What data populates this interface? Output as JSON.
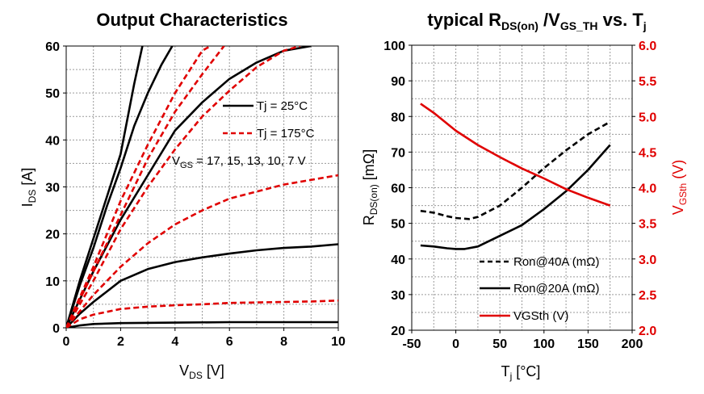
{
  "chart_data": [
    {
      "type": "line",
      "title": "Output Characteristics",
      "xlabel": "V",
      "xlabel_sub": "DS",
      "xlabel_unit": " [V]",
      "ylabel": "I",
      "ylabel_sub": "DS",
      "ylabel_unit": " [A]",
      "xlim": [
        0,
        10
      ],
      "ylim": [
        0,
        60
      ],
      "xticks": [
        0,
        2,
        4,
        6,
        8,
        10
      ],
      "yticks": [
        0,
        10,
        20,
        30,
        40,
        50,
        60
      ],
      "grid": true,
      "legend": [
        {
          "label": "Tj = 25°C",
          "color": "#000000",
          "dash": "solid"
        },
        {
          "label": "Tj = 175°C",
          "color": "#e00000",
          "dash": "dashed"
        }
      ],
      "annotation": {
        "pre": "V",
        "sub": "GS",
        "post": " = 17, 15, 13, 10, 7 V"
      },
      "series": [
        {
          "color": "#000000",
          "dash": "solid",
          "points": [
            [
              0,
              0
            ],
            [
              0.5,
              10
            ],
            [
              1,
              19
            ],
            [
              1.5,
              28
            ],
            [
              2,
              37
            ],
            [
              2.5,
              52
            ],
            [
              2.8,
              60
            ]
          ]
        },
        {
          "color": "#000000",
          "dash": "solid",
          "points": [
            [
              0,
              0
            ],
            [
              0.5,
              9
            ],
            [
              1,
              17
            ],
            [
              1.5,
              26
            ],
            [
              2,
              34
            ],
            [
              2.5,
              43
            ],
            [
              3,
              50
            ],
            [
              3.5,
              56
            ],
            [
              3.9,
              60
            ]
          ]
        },
        {
          "color": "#000000",
          "dash": "solid",
          "points": [
            [
              0,
              0
            ],
            [
              0.5,
              6
            ],
            [
              1,
              12
            ],
            [
              2,
              23
            ],
            [
              3,
              32.5
            ],
            [
              4,
              42
            ],
            [
              5,
              48
            ],
            [
              6,
              53
            ],
            [
              7,
              56.5
            ],
            [
              8,
              59
            ],
            [
              9,
              60
            ]
          ]
        },
        {
          "color": "#000000",
          "dash": "solid",
          "points": [
            [
              0,
              0
            ],
            [
              0.5,
              3
            ],
            [
              1,
              5.5
            ],
            [
              2,
              10
            ],
            [
              3,
              12.5
            ],
            [
              4,
              14
            ],
            [
              5,
              15
            ],
            [
              6,
              15.8
            ],
            [
              7,
              16.5
            ],
            [
              8,
              17
            ],
            [
              9,
              17.3
            ],
            [
              10,
              17.8
            ]
          ]
        },
        {
          "color": "#000000",
          "dash": "solid",
          "points": [
            [
              0,
              0
            ],
            [
              0.5,
              0.5
            ],
            [
              1,
              0.8
            ],
            [
              2,
              1
            ],
            [
              4,
              1.1
            ],
            [
              6,
              1.2
            ],
            [
              8,
              1.2
            ],
            [
              10,
              1.2
            ]
          ]
        },
        {
          "color": "#e00000",
          "dash": "dashed",
          "points": [
            [
              0,
              0
            ],
            [
              1,
              13
            ],
            [
              2,
              27
            ],
            [
              3,
              39
            ],
            [
              4,
              50
            ],
            [
              5,
              59
            ],
            [
              5.3,
              60
            ]
          ]
        },
        {
          "color": "#e00000",
          "dash": "dashed",
          "points": [
            [
              0,
              0
            ],
            [
              1,
              12
            ],
            [
              2,
              24
            ],
            [
              3,
              36
            ],
            [
              4,
              46
            ],
            [
              5,
              54
            ],
            [
              5.8,
              60
            ]
          ]
        },
        {
          "color": "#e00000",
          "dash": "dashed",
          "points": [
            [
              0,
              0
            ],
            [
              1,
              10
            ],
            [
              2,
              21
            ],
            [
              3,
              30
            ],
            [
              4,
              38
            ],
            [
              5,
              45
            ],
            [
              6,
              50.5
            ],
            [
              7,
              55.5
            ],
            [
              8,
              59
            ],
            [
              8.6,
              60
            ]
          ]
        },
        {
          "color": "#e00000",
          "dash": "dashed",
          "points": [
            [
              0,
              0
            ],
            [
              0.5,
              3.5
            ],
            [
              1,
              7
            ],
            [
              2,
              13
            ],
            [
              3,
              18
            ],
            [
              4,
              22
            ],
            [
              5,
              25
            ],
            [
              6,
              27.5
            ],
            [
              7,
              29
            ],
            [
              8,
              30.5
            ],
            [
              9,
              31.5
            ],
            [
              10,
              32.5
            ]
          ]
        },
        {
          "color": "#e00000",
          "dash": "dashed",
          "points": [
            [
              0,
              0
            ],
            [
              0.5,
              1.8
            ],
            [
              1,
              2.8
            ],
            [
              2,
              4
            ],
            [
              3,
              4.5
            ],
            [
              4,
              4.8
            ],
            [
              5,
              5
            ],
            [
              6,
              5.3
            ],
            [
              7,
              5.4
            ],
            [
              8,
              5.5
            ],
            [
              9,
              5.6
            ],
            [
              10,
              5.8
            ]
          ]
        }
      ]
    },
    {
      "type": "line",
      "title_parts": {
        "a": "typical R",
        "b": "DS(on)",
        "c": " /V",
        "d": "GS_TH",
        "e": " vs. T",
        "f": "j"
      },
      "xlabel": "T",
      "xlabel_sub": "j",
      "xlabel_unit": " [°C]",
      "ylabel": "R",
      "ylabel_sub": "DS(on)",
      "ylabel_unit": " [mΩ]",
      "y2label": "V",
      "y2label_sub": "GSth",
      "y2label_unit": " (V)",
      "xlim": [
        -50,
        200
      ],
      "ylim": [
        20,
        100
      ],
      "y2lim": [
        2.0,
        6.0
      ],
      "xticks": [
        -50,
        0,
        50,
        100,
        150,
        200
      ],
      "yticks": [
        20,
        30,
        40,
        50,
        60,
        70,
        80,
        90,
        100
      ],
      "y2ticks": [
        "2.0",
        "2.5",
        "3.0",
        "3.5",
        "4.0",
        "4.5",
        "5.0",
        "5.5",
        "6.0"
      ],
      "grid": true,
      "legend": [
        {
          "label": "Ron@40A (mΩ)",
          "color": "#000000",
          "dash": "dashed"
        },
        {
          "label": "Ron@20A (mΩ)",
          "color": "#000000",
          "dash": "solid"
        },
        {
          "label": "VGSth (V)",
          "color": "#e00000",
          "dash": "solid"
        }
      ],
      "series": [
        {
          "name": "Ron@40A (mΩ)",
          "axis": "left",
          "color": "#000000",
          "dash": "dashed",
          "points": [
            [
              -40,
              53.5
            ],
            [
              -25,
              53
            ],
            [
              -10,
              52
            ],
            [
              0,
              51.5
            ],
            [
              15,
              51.2
            ],
            [
              25,
              51.8
            ],
            [
              50,
              55
            ],
            [
              75,
              60
            ],
            [
              100,
              65.5
            ],
            [
              125,
              70.5
            ],
            [
              150,
              75
            ],
            [
              175,
              78.5
            ]
          ]
        },
        {
          "name": "Ron@20A (mΩ)",
          "axis": "left",
          "color": "#000000",
          "dash": "solid",
          "points": [
            [
              -40,
              43.8
            ],
            [
              -25,
              43.5
            ],
            [
              -10,
              43
            ],
            [
              0,
              42.8
            ],
            [
              10,
              42.8
            ],
            [
              25,
              43.5
            ],
            [
              50,
              46.5
            ],
            [
              75,
              49.5
            ],
            [
              100,
              54
            ],
            [
              125,
              59
            ],
            [
              150,
              65
            ],
            [
              175,
              72
            ]
          ]
        },
        {
          "name": "VGSth (V)",
          "axis": "right",
          "color": "#e00000",
          "dash": "solid",
          "points": [
            [
              -40,
              5.18
            ],
            [
              -25,
              5.05
            ],
            [
              0,
              4.8
            ],
            [
              25,
              4.6
            ],
            [
              50,
              4.43
            ],
            [
              75,
              4.27
            ],
            [
              100,
              4.13
            ],
            [
              125,
              3.98
            ],
            [
              150,
              3.86
            ],
            [
              175,
              3.75
            ]
          ]
        }
      ]
    }
  ]
}
